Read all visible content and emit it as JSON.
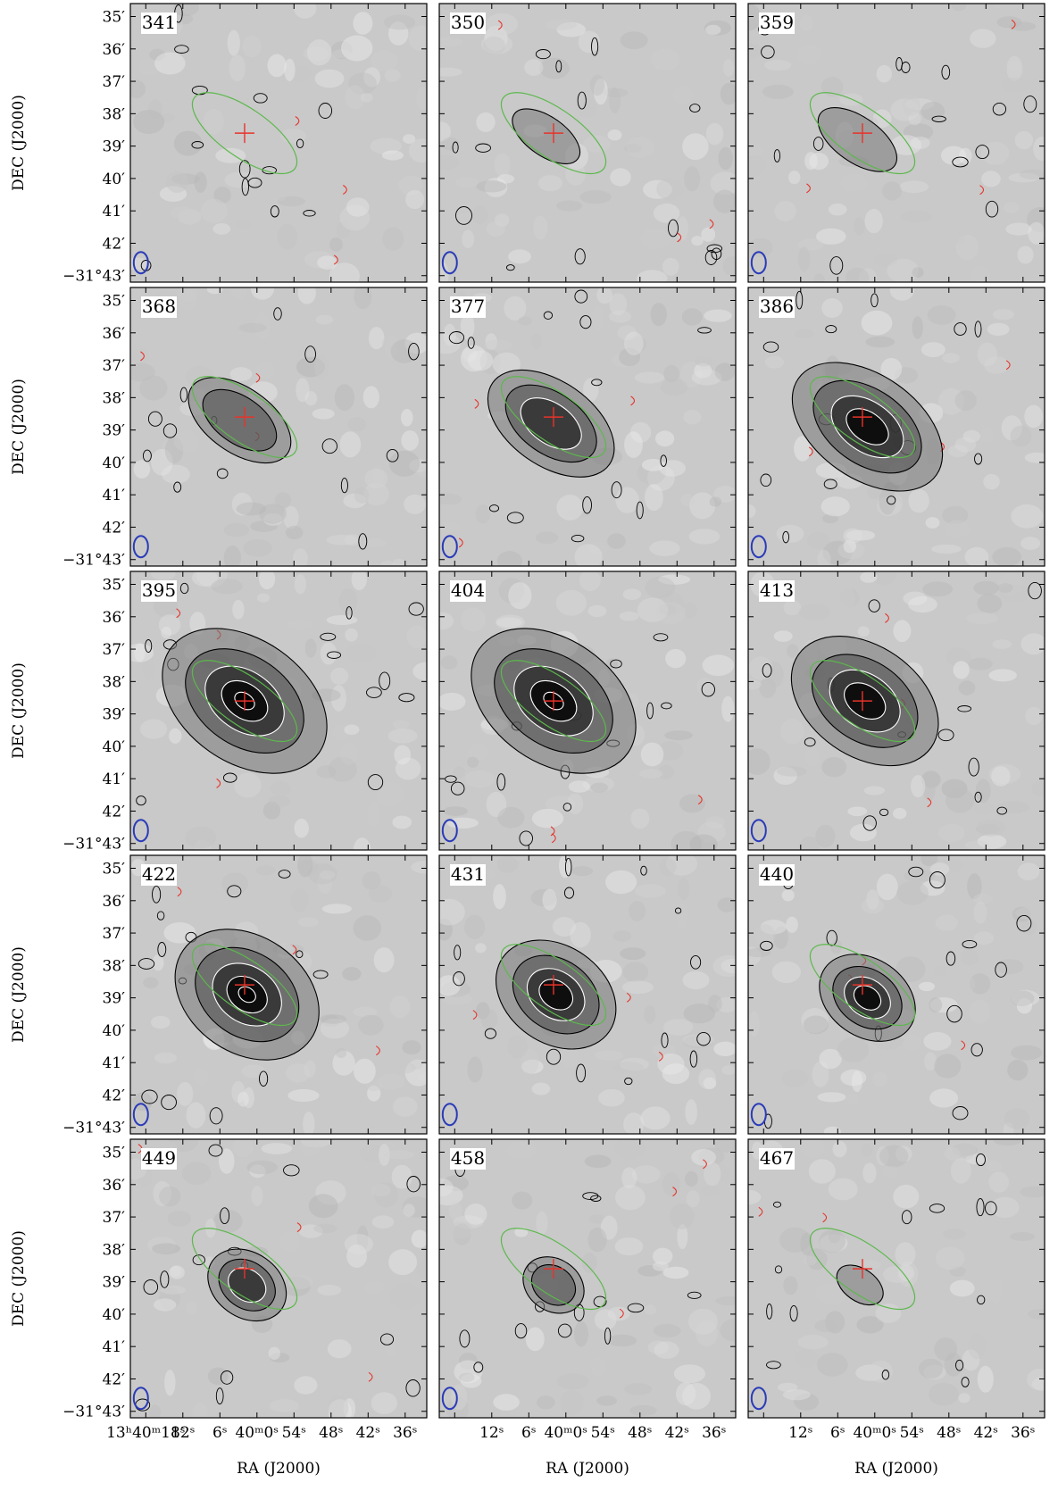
{
  "figure": {
    "y_axis_label": "DEC (J2000)",
    "x_axis_label": "RA (J2000)"
  },
  "chart_data": {
    "type": "channel_map_grid",
    "rows": 5,
    "columns": 3,
    "panels": [
      {
        "label": "341",
        "emission": 0.0,
        "major": 0.0,
        "minor": 0.0,
        "offset_x": 0.0,
        "offset_y": 0.0
      },
      {
        "label": "350",
        "emission": 0.1,
        "major": 1.2,
        "minor": 0.6,
        "offset_x": 0.3,
        "offset_y": 0.1
      },
      {
        "label": "359",
        "emission": 0.15,
        "major": 1.4,
        "minor": 0.7,
        "offset_x": 0.2,
        "offset_y": 0.2
      },
      {
        "label": "368",
        "emission": 0.35,
        "major": 1.8,
        "minor": 1.0,
        "offset_x": 0.2,
        "offset_y": 0.1
      },
      {
        "label": "377",
        "emission": 0.55,
        "major": 2.2,
        "minor": 1.3,
        "offset_x": 0.1,
        "offset_y": 0.2
      },
      {
        "label": "386",
        "emission": 0.8,
        "major": 2.6,
        "minor": 1.6,
        "offset_x": -0.2,
        "offset_y": 0.3
      },
      {
        "label": "395",
        "emission": 1.0,
        "major": 2.8,
        "minor": 1.9,
        "offset_x": 0.0,
        "offset_y": 0.0
      },
      {
        "label": "404",
        "emission": 0.95,
        "major": 2.8,
        "minor": 1.9,
        "offset_x": 0.0,
        "offset_y": 0.0
      },
      {
        "label": "413",
        "emission": 0.85,
        "major": 2.5,
        "minor": 1.7,
        "offset_x": -0.1,
        "offset_y": 0.0
      },
      {
        "label": "422",
        "emission": 0.9,
        "major": 2.4,
        "minor": 1.8,
        "offset_x": -0.1,
        "offset_y": 0.3
      },
      {
        "label": "431",
        "emission": 0.8,
        "major": 2.0,
        "minor": 1.5,
        "offset_x": -0.1,
        "offset_y": 0.3
      },
      {
        "label": "440",
        "emission": 0.7,
        "major": 1.6,
        "minor": 1.2,
        "offset_x": -0.2,
        "offset_y": 0.4
      },
      {
        "label": "449",
        "emission": 0.6,
        "major": 1.3,
        "minor": 1.0,
        "offset_x": -0.1,
        "offset_y": 0.5
      },
      {
        "label": "458",
        "emission": 0.4,
        "major": 1.0,
        "minor": 0.8,
        "offset_x": 0.0,
        "offset_y": 0.5
      },
      {
        "label": "467",
        "emission": 0.2,
        "major": 0.8,
        "minor": 0.5,
        "offset_x": 0.1,
        "offset_y": 0.5
      }
    ],
    "dec_ticks": [
      {
        "value": 35,
        "label": "35′"
      },
      {
        "value": 36,
        "label": "36′"
      },
      {
        "value": 37,
        "label": "37′"
      },
      {
        "value": 38,
        "label": "38′"
      },
      {
        "value": 39,
        "label": "39′"
      },
      {
        "value": 40,
        "label": "40′"
      },
      {
        "value": 41,
        "label": "41′"
      },
      {
        "value": 42,
        "label": "42′"
      },
      {
        "value": 43,
        "label": "−31°43′"
      }
    ],
    "ra_ticks_first_column": [
      {
        "value": 18,
        "label": "13ʰ40ᵐ18ˢ"
      },
      {
        "value": 12,
        "label": "12ˢ"
      },
      {
        "value": 6,
        "label": "6ˢ"
      },
      {
        "value": 0,
        "label": "40ᵐ0ˢ"
      },
      {
        "value": -6,
        "label": "54ˢ"
      },
      {
        "value": -12,
        "label": "48ˢ"
      },
      {
        "value": -18,
        "label": "42ˢ"
      },
      {
        "value": -24,
        "label": "36ˢ"
      }
    ],
    "ra_ticks_other_columns": [
      {
        "value": 12,
        "label": "12ˢ"
      },
      {
        "value": 6,
        "label": "6ˢ"
      },
      {
        "value": 0,
        "label": "40ᵐ0ˢ"
      },
      {
        "value": -6,
        "label": "54ˢ"
      },
      {
        "value": -12,
        "label": "48ˢ"
      },
      {
        "value": -18,
        "label": "42ˢ"
      },
      {
        "value": -24,
        "label": "36ˢ"
      }
    ],
    "ra_range": [
      20.5,
      -27.5
    ],
    "dec_range": [
      34.6,
      43.2
    ],
    "centre_marker": {
      "ra": 2.0,
      "dec": 38.6
    },
    "reference_ellipse": {
      "ra": 2.0,
      "dec": 38.6,
      "semi_major_arcmin": 1.9,
      "semi_minor_arcmin": 0.75,
      "position_angle_deg": -35
    },
    "beam": {
      "ra": 18.8,
      "dec": 42.6,
      "semi_major_arcmin": 0.33,
      "semi_minor_arcmin": 0.22
    },
    "colors": {
      "background_gray": "#c9c9c9",
      "contour_outer": "#000000",
      "contour_inner": "#ffffff",
      "negative_contour": "#e8332a",
      "marker": "#e8332a",
      "ellipse": "#5cb84c",
      "beam": "#2a3bb8"
    }
  }
}
